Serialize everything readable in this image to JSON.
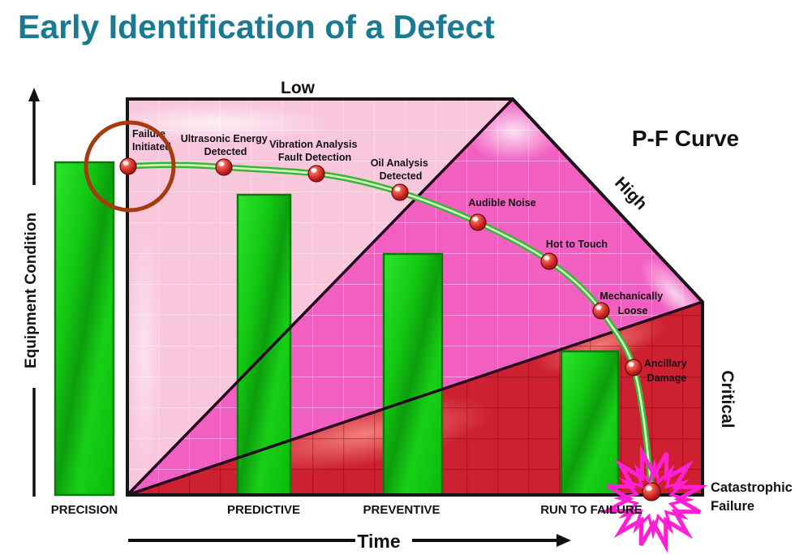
{
  "title": "Early Identification of a Defect",
  "diagram": {
    "curve_title": "P-F Curve",
    "y_axis_label": "Equipment Condition",
    "x_axis_label": "Time",
    "zones": {
      "low": "Low",
      "high": "High",
      "critical": "Critical"
    },
    "stages": [
      "PRECISION",
      "PREDICTIVE",
      "PREVENTIVE",
      "RUN TO FAILURE"
    ],
    "points": [
      {
        "id": "failure-initiated",
        "lines": [
          "Failure",
          "Initiated"
        ]
      },
      {
        "id": "ultrasonic-energy-detected",
        "lines": [
          "Ultrasonic Energy",
          "Detected"
        ]
      },
      {
        "id": "vibration-analysis-fault-detection",
        "lines": [
          "Vibration Analysis",
          "Fault Detection"
        ]
      },
      {
        "id": "oil-analysis-detected",
        "lines": [
          "Oil Analysis",
          "Detected"
        ]
      },
      {
        "id": "audible-noise",
        "lines": [
          "Audible Noise"
        ]
      },
      {
        "id": "hot-to-touch",
        "lines": [
          "Hot to Touch"
        ]
      },
      {
        "id": "mechanically-loose",
        "lines": [
          "Mechanically",
          "Loose"
        ]
      },
      {
        "id": "ancillary-damage",
        "lines": [
          "Ancillary",
          "Damage"
        ]
      },
      {
        "id": "catastrophic-failure",
        "lines": [
          "Catastrophic",
          "Failure"
        ]
      }
    ]
  },
  "colors": {
    "title": "#1A7A93",
    "zone_low_fill": "#F9C7DC",
    "zone_high_fill": "#F160C1",
    "zone_critical_fill": "#CD2030",
    "bar_green": "#14C414",
    "curve_green": "#35B835",
    "curve_inner": "#D8F6C6",
    "marker_red": "#C0221E",
    "annotation_circle": "#A63B10",
    "starburst": "#FF1FD4",
    "ancillary_text": "#FFE4EC"
  }
}
